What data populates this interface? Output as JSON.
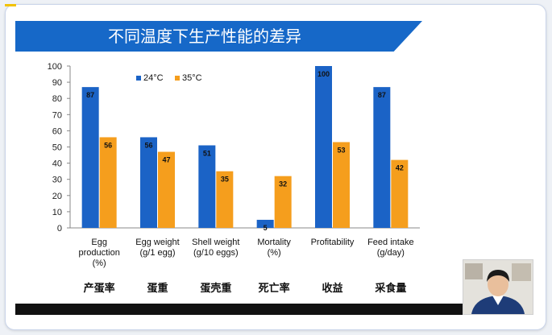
{
  "slide": {
    "title": "不同温度下生产性能的差异"
  },
  "chinese_labels": [
    "产蛋率",
    "蛋重",
    "蛋壳重",
    "死亡率",
    "收益",
    "采食量"
  ],
  "chart_data": {
    "type": "bar",
    "categories": [
      [
        "Egg",
        "production",
        "(%)"
      ],
      [
        "Egg weight",
        "(g/1 egg)"
      ],
      [
        "Shell weight",
        "(g/10 eggs)"
      ],
      [
        "Mortality",
        "(%)"
      ],
      [
        "Profitability"
      ],
      [
        "Feed intake",
        "(g/day)"
      ]
    ],
    "series": [
      {
        "name": "24°C",
        "color": "#1b63c6",
        "values": [
          87,
          56,
          51,
          5,
          100,
          87
        ]
      },
      {
        "name": "35°C",
        "color": "#f59e1d",
        "values": [
          56,
          47,
          35,
          32,
          53,
          42
        ]
      }
    ],
    "ylim": [
      0,
      100
    ],
    "yticks": [
      0,
      10,
      20,
      30,
      40,
      50,
      60,
      70,
      80,
      90,
      100
    ],
    "legend": "top-left",
    "grid": false
  }
}
